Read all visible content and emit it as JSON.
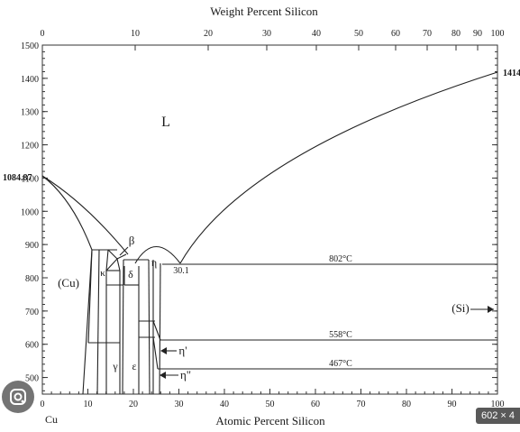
{
  "diagram": {
    "top_axis_title": "Weight Percent Silicon",
    "bottom_axis_title": "Atomic Percent Silicon",
    "top_ticks": [
      "0",
      "10",
      "20",
      "30",
      "40",
      "50",
      "60",
      "70",
      "80",
      "90",
      "100"
    ],
    "bottom_ticks": [
      "0",
      "10",
      "20",
      "30",
      "40",
      "50",
      "60",
      "70",
      "80",
      "90",
      "100"
    ],
    "left_ticks": [
      "500",
      "600",
      "700",
      "800",
      "900",
      "1000",
      "1100",
      "1200",
      "1300",
      "1400",
      "1500"
    ],
    "left_element": "Cu",
    "cu_melting": "1084.87",
    "si_melting": "1414",
    "eutectic_composition": "30.1",
    "isotherms": [
      "802°C",
      "558°C",
      "467°C"
    ],
    "phases": {
      "liquid": "L",
      "cu_solid": "(Cu)",
      "si_solid": "(Si)",
      "beta": "β",
      "kappa": "κ",
      "delta": "δ",
      "eta": "η",
      "gamma": "γ",
      "epsilon": "ε",
      "eta_prime": "η'",
      "eta_double_prime": "η\""
    }
  },
  "overlay": {
    "image_size_badge": "602 × 4",
    "lens_icon": "google-lens-icon"
  }
}
